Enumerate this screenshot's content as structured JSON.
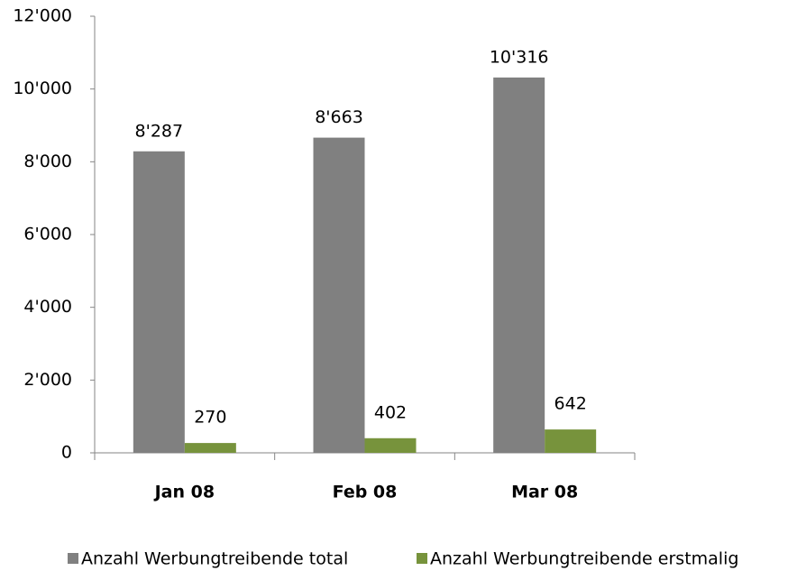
{
  "chart_data": {
    "type": "bar",
    "categories": [
      "Jan 08",
      "Feb 08",
      "Mar 08"
    ],
    "series": [
      {
        "name": "Anzahl Werbungtreibende total",
        "color": "#808080",
        "values": [
          8287,
          8663,
          10316
        ],
        "value_labels": [
          "8'287",
          "8'663",
          "10'316"
        ]
      },
      {
        "name": "Anzahl Werbungtreibende erstmalig",
        "color": "#77933c",
        "values": [
          270,
          402,
          642
        ]
      }
    ],
    "ylim": [
      0,
      12000
    ],
    "yticks": [
      0,
      {
        "value": 2000,
        "label": "2'000"
      },
      {
        "value": 4000,
        "label": "4'000"
      },
      {
        "value": 6000,
        "label": "6'000"
      },
      {
        "value": 8000,
        "label": "8'000"
      },
      {
        "value": 10000,
        "label": "10'000"
      },
      {
        "value": 12000,
        "label": "12'000"
      }
    ],
    "legend": "bottom"
  }
}
